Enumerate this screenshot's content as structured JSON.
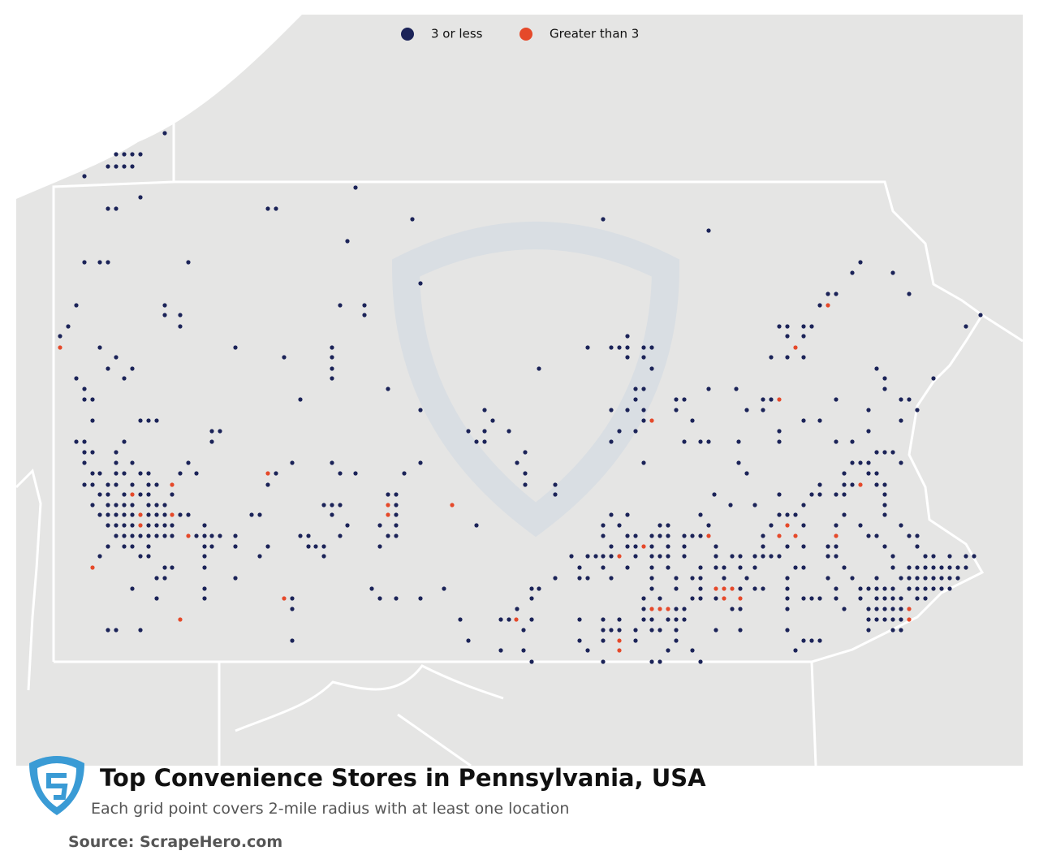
{
  "header": {
    "title": "Top Convenience Stores in Pennsylvania, USA",
    "subtitle": "Each grid point covers 2-mile radius with at least one location",
    "source": "Source: ScrapeHero.com"
  },
  "legend": [
    {
      "name": "3 or less",
      "color": "#1b2358"
    },
    {
      "name": "Greater than 3",
      "color": "#e5492a"
    }
  ]
}
